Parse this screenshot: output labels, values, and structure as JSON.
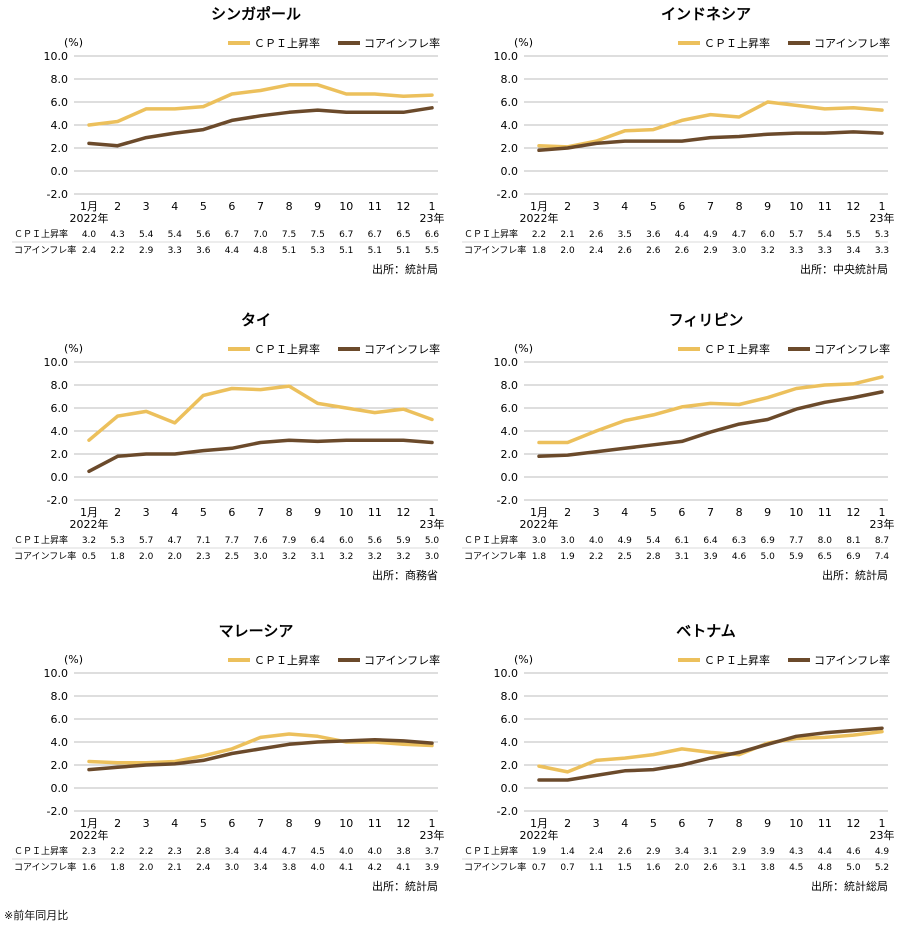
{
  "x_labels": [
    "1月",
    "2",
    "3",
    "4",
    "5",
    "6",
    "7",
    "8",
    "9",
    "10",
    "11",
    "12",
    "1"
  ],
  "year_start": "2022年",
  "year_end": "23年",
  "unit": "(%)",
  "legend": {
    "cpi": "ＣＰＩ上昇率",
    "core": "コアインフレ率"
  },
  "row_labels": {
    "cpi": "ＣＰＩ上昇率",
    "core": "コアインフレ率"
  },
  "colors": {
    "cpi": "#ecc05c",
    "core": "#6b4a2b"
  },
  "footnote": "※前年同月比",
  "chart_data": [
    {
      "type": "line",
      "title": "シンガポール",
      "source": "出所：統計局",
      "ylim": [
        -2,
        10
      ],
      "yticks": [
        "10.0",
        "8.0",
        "6.0",
        "4.0",
        "2.0",
        "0.0",
        "-2.0"
      ],
      "series": [
        {
          "name": "ＣＰＩ上昇率",
          "values": [
            4.0,
            4.3,
            5.4,
            5.4,
            5.6,
            6.7,
            7.0,
            7.5,
            7.5,
            6.7,
            6.7,
            6.5,
            6.6
          ]
        },
        {
          "name": "コアインフレ率",
          "values": [
            2.4,
            2.2,
            2.9,
            3.3,
            3.6,
            4.4,
            4.8,
            5.1,
            5.3,
            5.1,
            5.1,
            5.1,
            5.5
          ]
        }
      ]
    },
    {
      "type": "line",
      "title": "インドネシア",
      "source": "出所：中央統計局",
      "ylim": [
        -2,
        10
      ],
      "yticks": [
        "10.0",
        "8.0",
        "6.0",
        "4.0",
        "2.0",
        "0.0",
        "-2.0"
      ],
      "series": [
        {
          "name": "ＣＰＩ上昇率",
          "values": [
            2.2,
            2.1,
            2.6,
            3.5,
            3.6,
            4.4,
            4.9,
            4.7,
            6.0,
            5.7,
            5.4,
            5.5,
            5.3
          ]
        },
        {
          "name": "コアインフレ率",
          "values": [
            1.8,
            2.0,
            2.4,
            2.6,
            2.6,
            2.6,
            2.9,
            3.0,
            3.2,
            3.3,
            3.3,
            3.4,
            3.3
          ]
        }
      ]
    },
    {
      "type": "line",
      "title": "タイ",
      "source": "出所：商務省",
      "ylim": [
        -2,
        10
      ],
      "yticks": [
        "10.0",
        "8.0",
        "6.0",
        "4.0",
        "2.0",
        "0.0",
        "-2.0"
      ],
      "series": [
        {
          "name": "ＣＰＩ上昇率",
          "values": [
            3.2,
            5.3,
            5.7,
            4.7,
            7.1,
            7.7,
            7.6,
            7.9,
            6.4,
            6.0,
            5.6,
            5.9,
            5.0
          ]
        },
        {
          "name": "コアインフレ率",
          "values": [
            0.5,
            1.8,
            2.0,
            2.0,
            2.3,
            2.5,
            3.0,
            3.2,
            3.1,
            3.2,
            3.2,
            3.2,
            3.0
          ]
        }
      ]
    },
    {
      "type": "line",
      "title": "フィリピン",
      "source": "出所：統計局",
      "ylim": [
        -2,
        10
      ],
      "yticks": [
        "10.0",
        "8.0",
        "6.0",
        "4.0",
        "2.0",
        "0.0",
        "-2.0"
      ],
      "series": [
        {
          "name": "ＣＰＩ上昇率",
          "values": [
            3.0,
            3.0,
            4.0,
            4.9,
            5.4,
            6.1,
            6.4,
            6.3,
            6.9,
            7.7,
            8.0,
            8.1,
            8.7
          ]
        },
        {
          "name": "コアインフレ率",
          "values": [
            1.8,
            1.9,
            2.2,
            2.5,
            2.8,
            3.1,
            3.9,
            4.6,
            5.0,
            5.9,
            6.5,
            6.9,
            7.4
          ]
        }
      ]
    },
    {
      "type": "line",
      "title": "マレーシア",
      "source": "出所：統計局",
      "ylim": [
        -2,
        10
      ],
      "yticks": [
        "10.0",
        "8.0",
        "6.0",
        "4.0",
        "2.0",
        "0.0",
        "-2.0"
      ],
      "series": [
        {
          "name": "ＣＰＩ上昇率",
          "values": [
            2.3,
            2.2,
            2.2,
            2.3,
            2.8,
            3.4,
            4.4,
            4.7,
            4.5,
            4.0,
            4.0,
            3.8,
            3.7
          ]
        },
        {
          "name": "コアインフレ率",
          "values": [
            1.6,
            1.8,
            2.0,
            2.1,
            2.4,
            3.0,
            3.4,
            3.8,
            4.0,
            4.1,
            4.2,
            4.1,
            3.9
          ]
        }
      ]
    },
    {
      "type": "line",
      "title": "ベトナム",
      "source": "出所：統計総局",
      "ylim": [
        -2,
        10
      ],
      "yticks": [
        "10.0",
        "8.0",
        "6.0",
        "4.0",
        "2.0",
        "0.0",
        "-2.0"
      ],
      "series": [
        {
          "name": "ＣＰＩ上昇率",
          "values": [
            1.9,
            1.4,
            2.4,
            2.6,
            2.9,
            3.4,
            3.1,
            2.9,
            3.9,
            4.3,
            4.4,
            4.6,
            4.9
          ]
        },
        {
          "name": "コアインフレ率",
          "values": [
            0.7,
            0.7,
            1.1,
            1.5,
            1.6,
            2.0,
            2.6,
            3.1,
            3.8,
            4.5,
            4.8,
            5.0,
            5.2
          ]
        }
      ]
    }
  ]
}
